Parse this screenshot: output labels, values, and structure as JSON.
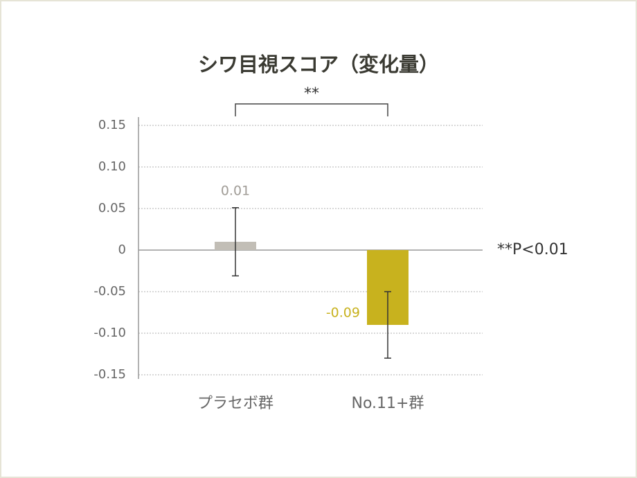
{
  "chart_data": {
    "type": "bar",
    "title": "シワ目視スコア（変化量）",
    "categories": [
      "プラセボ群",
      "No.11+群"
    ],
    "values": [
      0.01,
      -0.09
    ],
    "errors": [
      0.041,
      0.04
    ],
    "colors": [
      "#c2beb6",
      "#c8b21e"
    ],
    "label_colors": [
      "#a09c96",
      "#c8b21e"
    ],
    "ylim": [
      -0.155,
      0.16
    ],
    "yticks": [
      0.15,
      {
        "value": 0.1,
        "label": "0.10"
      },
      0.05,
      0,
      -0.05,
      {
        "value": -0.1,
        "label": "-0.10"
      },
      -0.15
    ],
    "grid": true,
    "annotations": {
      "significance": "**",
      "note": "**P<0.01"
    }
  }
}
